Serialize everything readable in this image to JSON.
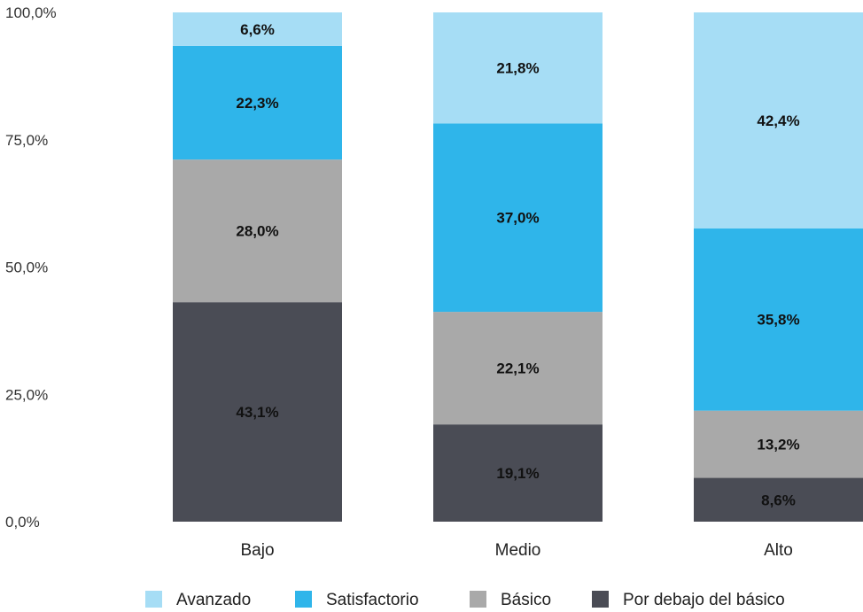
{
  "chart_data": {
    "type": "bar",
    "stacked": true,
    "categories": [
      "Bajo",
      "Medio",
      "Alto"
    ],
    "series": [
      {
        "name": "Por debajo del básico",
        "color": "#4a4c55",
        "values": [
          43.1,
          19.1,
          8.6
        ],
        "labels": [
          "43,1%",
          "19,1%",
          "8,6%"
        ]
      },
      {
        "name": "Básico",
        "color": "#a9a9a9",
        "values": [
          28.0,
          22.1,
          13.2
        ],
        "labels": [
          "28,0%",
          "22,1%",
          "13,2%"
        ]
      },
      {
        "name": "Satisfactorio",
        "color": "#2fb5ea",
        "values": [
          22.3,
          37.0,
          35.8
        ],
        "labels": [
          "22,3%",
          "37,0%",
          "35,8%"
        ]
      },
      {
        "name": "Avanzado",
        "color": "#a6ddf5",
        "values": [
          6.6,
          21.8,
          42.4
        ],
        "labels": [
          "6,6%",
          "21,8%",
          "42,4%"
        ]
      }
    ],
    "ylim": [
      0,
      100
    ],
    "yticks": [
      0,
      25,
      50,
      75,
      100
    ],
    "ytick_labels": [
      "0,0%",
      "25,0%",
      "50,0%",
      "75,0%",
      "100,0%"
    ],
    "legend_order": [
      "Avanzado",
      "Satisfactorio",
      "Básico",
      "Por debajo del básico"
    ],
    "legend_position": "bottom",
    "grid": false
  }
}
